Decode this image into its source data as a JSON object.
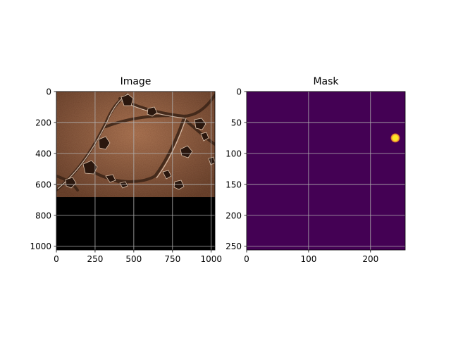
{
  "chart_data": [
    {
      "type": "heatmap",
      "title": "Image",
      "xlabel": "",
      "ylabel": "",
      "xlim": [
        0,
        1024
      ],
      "ylim": [
        1024,
        0
      ],
      "xticks": [
        0,
        250,
        500,
        750,
        1000
      ],
      "yticks": [
        0,
        200,
        400,
        600,
        800,
        1000
      ],
      "xtick_labels": [
        "0",
        "250",
        "500",
        "750",
        "1000"
      ],
      "ytick_labels": [
        "0",
        "200",
        "400",
        "600",
        "800",
        "1000"
      ],
      "grid": true,
      "colormap": "copper-like grayscale micrograph",
      "image_content_rows": [
        0,
        680
      ],
      "blank_region_rows": [
        680,
        1024
      ],
      "blank_color": "#000000"
    },
    {
      "type": "heatmap",
      "title": "Mask",
      "xlabel": "",
      "ylabel": "",
      "xlim": [
        0,
        256
      ],
      "ylim": [
        256,
        0
      ],
      "xticks": [
        0,
        100,
        200
      ],
      "yticks": [
        0,
        50,
        100,
        150,
        200,
        250
      ],
      "xtick_labels": [
        "0",
        "100",
        "200"
      ],
      "ytick_labels": [
        "0",
        "50",
        "100",
        "150",
        "200",
        "250"
      ],
      "grid": true,
      "colormap": "viridis",
      "background_color": "#440154",
      "blobs": [
        {
          "x": 240,
          "y": 75,
          "value": 1
        }
      ]
    }
  ]
}
